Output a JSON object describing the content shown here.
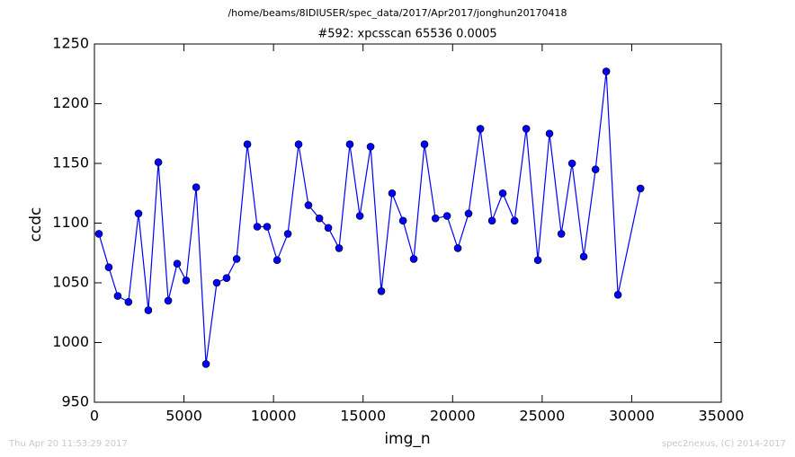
{
  "chart_data": {
    "type": "line",
    "header": "/home/beams/8IDIUSER/spec_data/2017/Apr2017/jonghun20170418",
    "title": "#592: xpcsscan 65536 0.0005",
    "x_label": "img_n",
    "y_label": "ccdc",
    "footer_left": "Thu Apr 20 11:53:29 2017",
    "footer_right": "spec2nexus, (C) 2014-2017",
    "x": [
      250,
      800,
      1300,
      1900,
      2460,
      3010,
      3570,
      4120,
      4620,
      5120,
      5680,
      6230,
      6830,
      7380,
      7940,
      8540,
      9090,
      9640,
      10200,
      10800,
      11400,
      11950,
      12560,
      13060,
      13660,
      14260,
      14820,
      15420,
      16020,
      16620,
      17230,
      17830,
      18430,
      19040,
      19690,
      20290,
      20890,
      21550,
      22200,
      22800,
      23460,
      24110,
      24760,
      25410,
      26070,
      26670,
      27320,
      27980,
      28580,
      29230,
      30490
    ],
    "series": [
      {
        "name": "ccdc",
        "color": "#0000ff",
        "values": [
          1091,
          1063,
          1039,
          1034,
          1108,
          1027,
          1151,
          1035,
          1066,
          1052,
          1130,
          982,
          1050,
          1054,
          1070,
          1166,
          1097,
          1097,
          1069,
          1091,
          1166,
          1115,
          1104,
          1096,
          1079,
          1166,
          1106,
          1164,
          1043,
          1125,
          1102,
          1070,
          1166,
          1104,
          1106,
          1079,
          1108,
          1179,
          1102,
          1125,
          1102,
          1179,
          1069,
          1175,
          1091,
          1150,
          1072,
          1145,
          1227,
          1040,
          1129
        ]
      }
    ],
    "xlim": [
      0,
      35000
    ],
    "xticks": [
      0,
      5000,
      10000,
      15000,
      20000,
      25000,
      30000,
      35000
    ],
    "ylim": [
      950,
      1250
    ],
    "yticks": [
      950,
      1000,
      1050,
      1100,
      1150,
      1200,
      1250
    ],
    "grid": false
  }
}
